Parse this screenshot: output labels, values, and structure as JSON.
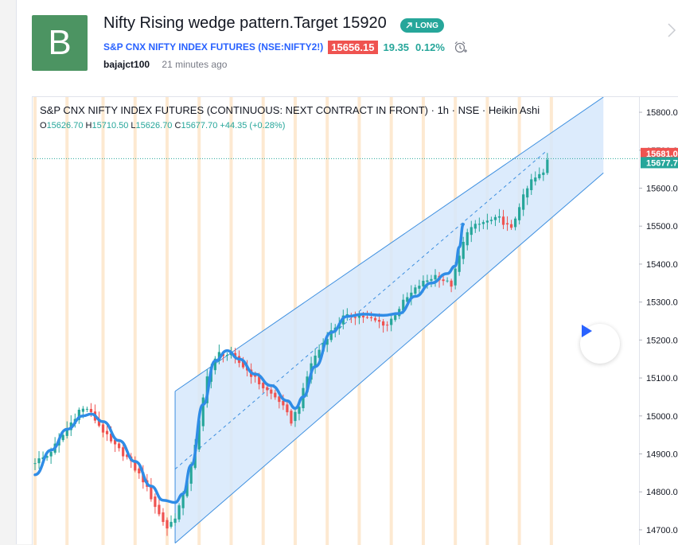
{
  "idea": {
    "avatar_letter": "B",
    "title": "Nifty Rising wedge pattern.Target 15920",
    "badge": "LONG",
    "symbol_name": "S&P CNX NIFTY INDEX FUTURES",
    "symbol_code": "(NSE:NIFTY2!)",
    "price": "15656.15",
    "change": "19.35",
    "change_pct": "0.12%",
    "author": "bajajct100",
    "time_ago": "21 minutes ago"
  },
  "colors": {
    "up": "#26a69a",
    "down": "#ef5350",
    "ma": "#2f8ce6",
    "channel_fill": "#d6e8fb",
    "channel_line": "#3d8fe0",
    "session": "#fde3c6",
    "brand": "#2962ff",
    "avatar": "#4c9462"
  },
  "icons": [
    "alarm-clock-icon",
    "chevron-right-icon",
    "play-icon",
    "trend-up-arrow-icon"
  ],
  "chart_data": {
    "type": "candlestick",
    "legend": "S&P CNX NIFTY INDEX FUTURES (CONTINUOUS: NEXT CONTRACT IN FRONT) · 1h · NSE · Heikin Ashi",
    "ohlc": {
      "O": "15626.70",
      "H": "15710.50",
      "L": "15626.70",
      "C": "15677.70",
      "change": "+44.35 (+0.28%)"
    },
    "y_axis": {
      "min": 14660,
      "max": 15840,
      "ticks": [
        14700,
        14800,
        14900,
        15000,
        15100,
        15200,
        15300,
        15400,
        15500,
        15600,
        15700,
        15800
      ]
    },
    "y_tick_labels": [
      "14700.0",
      "14800.0",
      "14900.0",
      "15000.0",
      "15100.0",
      "15200.0",
      "15300.0",
      "15400.0",
      "15500.0",
      "15600.0",
      "15700.0",
      "15800.0"
    ],
    "price_tags": [
      {
        "label": "15681.0",
        "value": 15681.0,
        "color": "#ef5350"
      },
      {
        "label": "15677.7",
        "value": 15677.7,
        "color": "#26a69a"
      }
    ],
    "moving_average": [
      {
        "bar": 0,
        "value": 14845
      },
      {
        "bar": 4,
        "value": 14910
      },
      {
        "bar": 8,
        "value": 14965
      },
      {
        "bar": 12,
        "value": 15000
      },
      {
        "bar": 14,
        "value": 15005
      },
      {
        "bar": 17,
        "value": 14985
      },
      {
        "bar": 21,
        "value": 14935
      },
      {
        "bar": 25,
        "value": 14880
      },
      {
        "bar": 29,
        "value": 14815
      },
      {
        "bar": 32,
        "value": 14778
      },
      {
        "bar": 35,
        "value": 14772
      },
      {
        "bar": 37,
        "value": 14795
      },
      {
        "bar": 39,
        "value": 14870
      },
      {
        "bar": 42,
        "value": 15030
      },
      {
        "bar": 45,
        "value": 15145
      },
      {
        "bar": 48,
        "value": 15172
      },
      {
        "bar": 51,
        "value": 15150
      },
      {
        "bar": 55,
        "value": 15110
      },
      {
        "bar": 59,
        "value": 15080
      },
      {
        "bar": 63,
        "value": 15040
      },
      {
        "bar": 65,
        "value": 15020
      },
      {
        "bar": 67,
        "value": 15050
      },
      {
        "bar": 70,
        "value": 15130
      },
      {
        "bar": 74,
        "value": 15220
      },
      {
        "bar": 78,
        "value": 15262
      },
      {
        "bar": 82,
        "value": 15268
      },
      {
        "bar": 87,
        "value": 15265
      },
      {
        "bar": 91,
        "value": 15270
      },
      {
        "bar": 95,
        "value": 15315
      },
      {
        "bar": 99,
        "value": 15350
      },
      {
        "bar": 103,
        "value": 15375
      },
      {
        "bar": 105,
        "value": 15395
      },
      {
        "bar": 106,
        "value": 15445
      },
      {
        "bar": 107,
        "value": 15505
      }
    ],
    "channel": {
      "upper": [
        {
          "bar": 35,
          "value": 15065
        },
        {
          "bar": 142,
          "value": 15840
        }
      ],
      "mid": [
        {
          "bar": 35,
          "value": 14860
        },
        {
          "bar": 128,
          "value": 15700
        }
      ],
      "lower": [
        {
          "bar": 35,
          "value": 14665
        },
        {
          "bar": 142,
          "value": 15640
        }
      ]
    },
    "anchors": [
      {
        "bar": 0,
        "value": 14880
      },
      {
        "bar": 3,
        "value": 14895
      },
      {
        "bar": 7,
        "value": 14950
      },
      {
        "bar": 11,
        "value": 15015
      },
      {
        "bar": 13,
        "value": 15020
      },
      {
        "bar": 15,
        "value": 14990
      },
      {
        "bar": 19,
        "value": 14930
      },
      {
        "bar": 23,
        "value": 14890
      },
      {
        "bar": 27,
        "value": 14830
      },
      {
        "bar": 31,
        "value": 14740
      },
      {
        "bar": 33,
        "value": 14705
      },
      {
        "bar": 35,
        "value": 14735
      },
      {
        "bar": 37,
        "value": 14790
      },
      {
        "bar": 40,
        "value": 14920
      },
      {
        "bar": 43,
        "value": 15110
      },
      {
        "bar": 46,
        "value": 15165
      },
      {
        "bar": 49,
        "value": 15160
      },
      {
        "bar": 53,
        "value": 15120
      },
      {
        "bar": 57,
        "value": 15075
      },
      {
        "bar": 61,
        "value": 15040
      },
      {
        "bar": 64,
        "value": 14985
      },
      {
        "bar": 66,
        "value": 15030
      },
      {
        "bar": 69,
        "value": 15140
      },
      {
        "bar": 73,
        "value": 15210
      },
      {
        "bar": 77,
        "value": 15260
      },
      {
        "bar": 81,
        "value": 15265
      },
      {
        "bar": 85,
        "value": 15250
      },
      {
        "bar": 88,
        "value": 15240
      },
      {
        "bar": 92,
        "value": 15300
      },
      {
        "bar": 96,
        "value": 15345
      },
      {
        "bar": 100,
        "value": 15370
      },
      {
        "bar": 104,
        "value": 15345
      },
      {
        "bar": 106,
        "value": 15420
      },
      {
        "bar": 108,
        "value": 15490
      },
      {
        "bar": 112,
        "value": 15510
      },
      {
        "bar": 116,
        "value": 15520
      },
      {
        "bar": 119,
        "value": 15490
      },
      {
        "bar": 121,
        "value": 15555
      },
      {
        "bar": 124,
        "value": 15620
      },
      {
        "bar": 127,
        "value": 15640
      },
      {
        "bar": 128,
        "value": 15678
      }
    ],
    "bar_count": 129,
    "session_separators": [
      0,
      8,
      17,
      25,
      33,
      41,
      49,
      57,
      65,
      73,
      81,
      89,
      97,
      105,
      113,
      121,
      129
    ]
  }
}
